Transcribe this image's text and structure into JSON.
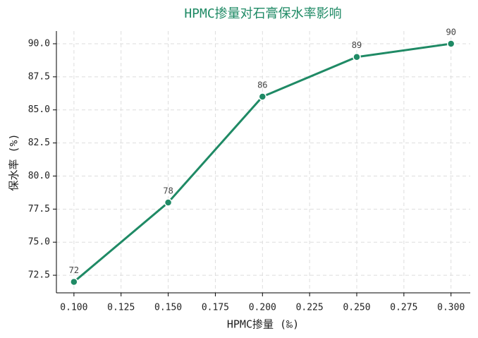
{
  "chart_data": {
    "type": "line",
    "title": "HPMC掺量对石膏保水率影响",
    "x_label": "HPMC掺量 (‰)",
    "y_label": "保水率 (%)",
    "x": [
      0.1,
      0.15,
      0.2,
      0.25,
      0.3
    ],
    "series": [
      {
        "color": "#1f8a65",
        "values": [
          72,
          78,
          86,
          89,
          90
        ]
      }
    ],
    "xlim": [
      0.0907,
      0.3102
    ],
    "xticks": [
      {
        "value": 0.1,
        "label": "0.100"
      },
      {
        "value": 0.125,
        "label": "0.125"
      },
      {
        "value": 0.15,
        "label": "0.150"
      },
      {
        "value": 0.175,
        "label": "0.175"
      },
      {
        "value": 0.2,
        "label": "0.200"
      },
      {
        "value": 0.225,
        "label": "0.225"
      },
      {
        "value": 0.25,
        "label": "0.250"
      },
      {
        "value": 0.275,
        "label": "0.275"
      },
      {
        "value": 0.3,
        "label": "0.300"
      }
    ],
    "ylim": [
      71.17,
      90.96
    ],
    "yticks": [
      72.5,
      {
        "value": 75,
        "label": "75.0"
      },
      77.5,
      {
        "value": 80,
        "label": "80.0"
      },
      82.5,
      {
        "value": 85,
        "label": "85.0"
      },
      87.5,
      {
        "value": 90,
        "label": "90.0"
      }
    ],
    "grid": true
  }
}
